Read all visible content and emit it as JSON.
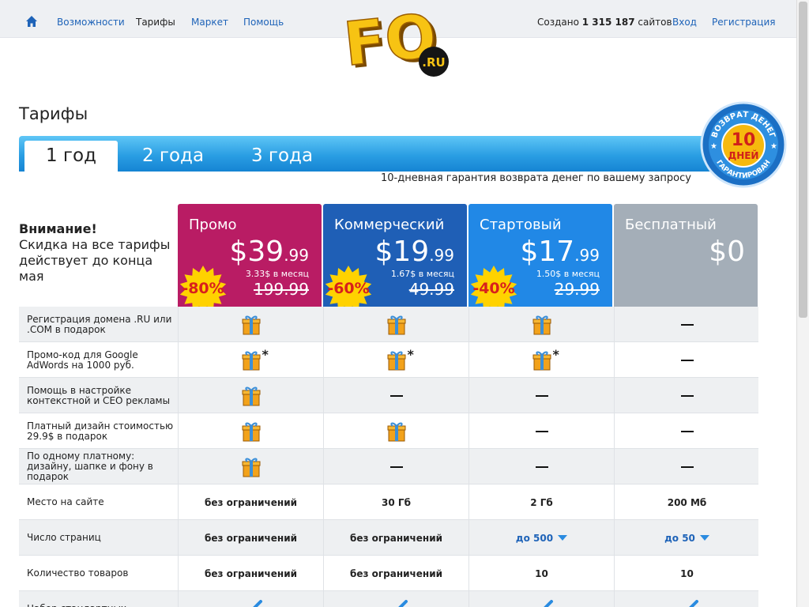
{
  "nav": {
    "links": [
      "Возможности",
      "Тарифы",
      "Маркет",
      "Помощь"
    ],
    "created_prefix": "Создано",
    "created_count": "1 315 187",
    "created_suffix": "сайтов",
    "login": "Вход",
    "register": "Регистрация"
  },
  "logo": {
    "text": "FO",
    "suffix": ".RU"
  },
  "page": {
    "title": "Тарифы",
    "tabs": [
      "1 год",
      "2 года",
      "3 года"
    ],
    "guarantee": "10-дневная гарантия возврата денег по вашему запросу"
  },
  "badge": {
    "top": "ВОЗВРАТ ДЕНЕГ",
    "number": "10",
    "days": "ДНЕЙ",
    "bottom": "ГАРАНТИРОВАН"
  },
  "notice": {
    "title": "Внимание!",
    "text": "Скидка на все тарифы действует до конца мая"
  },
  "plans": [
    {
      "name": "Промо",
      "price": "$39",
      "cents": ".99",
      "per_month": "3.33$ в месяц",
      "old_price": "199.99",
      "discount": "-80%",
      "color": "#b91c64"
    },
    {
      "name": "Коммерческий",
      "price": "$19",
      "cents": ".99",
      "per_month": "1.67$ в месяц",
      "old_price": "49.99",
      "discount": "-60%",
      "color": "#1f5fb6"
    },
    {
      "name": "Стартовый",
      "price": "$17",
      "cents": ".99",
      "per_month": "1.50$ в месяц",
      "old_price": "29.99",
      "discount": "-40%",
      "color": "#2188e6"
    },
    {
      "name": "Бесплатный",
      "price": "$0",
      "cents": "",
      "per_month": "",
      "old_price": "",
      "discount": "",
      "color": "#a4aeb8"
    }
  ],
  "features": [
    {
      "label": "Регистрация домена .RU или .COM в подарок",
      "cells": [
        {
          "kind": "gift"
        },
        {
          "kind": "gift"
        },
        {
          "kind": "gift"
        },
        {
          "kind": "dash"
        }
      ]
    },
    {
      "label": "Промо-код для Google AdWords на 1000 руб.",
      "cells": [
        {
          "kind": "gift",
          "star": "*"
        },
        {
          "kind": "gift",
          "star": "*"
        },
        {
          "kind": "gift",
          "star": "*"
        },
        {
          "kind": "dash"
        }
      ]
    },
    {
      "label": "Помощь в настройке контекстной и СЕО рекламы",
      "cells": [
        {
          "kind": "gift"
        },
        {
          "kind": "dash"
        },
        {
          "kind": "dash"
        },
        {
          "kind": "dash"
        }
      ]
    },
    {
      "label": "Платный дизайн стоимостью 29.9$ в подарок",
      "cells": [
        {
          "kind": "gift"
        },
        {
          "kind": "gift"
        },
        {
          "kind": "dash"
        },
        {
          "kind": "dash"
        }
      ]
    },
    {
      "label": "По одному платному: дизайну, шапке и фону в подарок",
      "cells": [
        {
          "kind": "gift"
        },
        {
          "kind": "dash"
        },
        {
          "kind": "dash"
        },
        {
          "kind": "dash"
        }
      ]
    },
    {
      "label": "Место на сайте",
      "cells": [
        {
          "kind": "text",
          "text": "без ограничений"
        },
        {
          "kind": "text",
          "text": "30 Гб"
        },
        {
          "kind": "text",
          "text": "2 Гб"
        },
        {
          "kind": "text",
          "text": "200 Мб"
        }
      ]
    },
    {
      "label": "Число страниц",
      "cells": [
        {
          "kind": "text",
          "text": "без ограничений"
        },
        {
          "kind": "text",
          "text": "без ограничений"
        },
        {
          "kind": "dropdown",
          "text": "до 500"
        },
        {
          "kind": "dropdown",
          "text": "до 50"
        }
      ]
    },
    {
      "label": "Количество товаров",
      "cells": [
        {
          "kind": "text",
          "text": "без ограничений"
        },
        {
          "kind": "text",
          "text": "без ограничений"
        },
        {
          "kind": "text",
          "text": "10"
        },
        {
          "kind": "text",
          "text": "10"
        }
      ]
    },
    {
      "label": "Набор стандартных",
      "cells": [
        {
          "kind": "check"
        },
        {
          "kind": "check"
        },
        {
          "kind": "check"
        },
        {
          "kind": "check"
        }
      ]
    }
  ]
}
